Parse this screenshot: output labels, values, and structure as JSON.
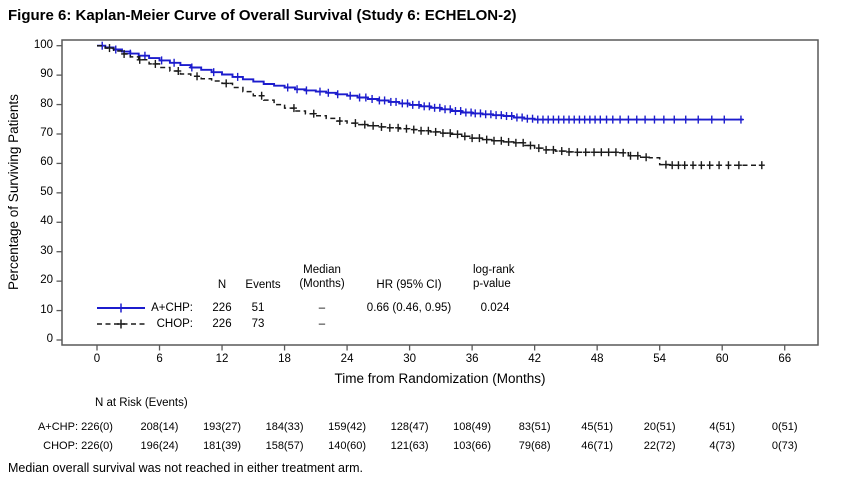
{
  "title": "Figure 6: Kaplan-Meier Curve of Overall Survival (Study 6: ECHELON-2)",
  "footnote": "Median overall survival was not reached in either treatment arm.",
  "colors": {
    "achp_line": "#1c1ccd",
    "chop_line": "#1a1a1a",
    "axis": "#595959",
    "text": "#000000"
  },
  "chart_data": {
    "type": "line",
    "subtype": "kaplan-meier-step",
    "title": "",
    "xlabel": "Time from Randomization (Months)",
    "ylabel": "Percentage of Surviving Patients",
    "xlim": [
      0,
      69
    ],
    "ylim": [
      0,
      100
    ],
    "xticks": [
      0,
      6,
      12,
      18,
      24,
      30,
      36,
      42,
      48,
      54,
      60,
      66
    ],
    "yticks": [
      0,
      10,
      20,
      30,
      40,
      50,
      60,
      70,
      80,
      90,
      100
    ],
    "grid": false,
    "legend_position": "inside-lower-left",
    "series": [
      {
        "name": "A+CHP",
        "color": "#1c1ccd",
        "style": "solid",
        "steps": [
          [
            0,
            100
          ],
          [
            0.8,
            99.4
          ],
          [
            1.6,
            98.7
          ],
          [
            2.4,
            98.0
          ],
          [
            3.2,
            97.3
          ],
          [
            4,
            96.6
          ],
          [
            5,
            95.8
          ],
          [
            6,
            95.0
          ],
          [
            7,
            94.2
          ],
          [
            8,
            93.4
          ],
          [
            9,
            92.6
          ],
          [
            10,
            91.8
          ],
          [
            11,
            91.0
          ],
          [
            12,
            90.2
          ],
          [
            13,
            89.4
          ],
          [
            14,
            88.6
          ],
          [
            15,
            87.8
          ],
          [
            16,
            87.0
          ],
          [
            17,
            86.4
          ],
          [
            18,
            85.8
          ],
          [
            19,
            85.2
          ],
          [
            20,
            84.8
          ],
          [
            21,
            84.4
          ],
          [
            22,
            84.0
          ],
          [
            23,
            83.5
          ],
          [
            24,
            83.0
          ],
          [
            25,
            82.4
          ],
          [
            26,
            81.9
          ],
          [
            27,
            81.4
          ],
          [
            28,
            80.9
          ],
          [
            29,
            80.4
          ],
          [
            30,
            79.9
          ],
          [
            31,
            79.4
          ],
          [
            32,
            78.9
          ],
          [
            33,
            78.4
          ],
          [
            34,
            77.8
          ],
          [
            35,
            77.3
          ],
          [
            36,
            77.0
          ],
          [
            37,
            76.7
          ],
          [
            38,
            76.4
          ],
          [
            39,
            76.1
          ],
          [
            40,
            75.6
          ],
          [
            41,
            75.2
          ],
          [
            42,
            74.9
          ],
          [
            62,
            74.9
          ]
        ],
        "censor_times": [
          0.5,
          1.8,
          3.2,
          4.6,
          6.2,
          7.4,
          9.1,
          11.2,
          13.5,
          18.3,
          19.2,
          20.1,
          21.4,
          22.2,
          23.1,
          24.3,
          25.2,
          25.8,
          26.4,
          27.1,
          27.6,
          28.2,
          28.7,
          29.3,
          29.8,
          30.3,
          30.9,
          31.4,
          31.9,
          32.4,
          32.9,
          33.4,
          33.9,
          34.4,
          34.9,
          35.4,
          35.9,
          36.3,
          36.8,
          37.3,
          37.8,
          38.3,
          38.8,
          39.3,
          39.8,
          40.3,
          40.8,
          41.3,
          41.8,
          42.3,
          42.8,
          43.3,
          43.8,
          44.3,
          44.8,
          45.3,
          45.8,
          46.3,
          46.8,
          47.3,
          47.8,
          48.3,
          48.9,
          49.5,
          50.2,
          51,
          51.8,
          52.6,
          53.5,
          54.4,
          55.4,
          56.5,
          57.7,
          59,
          60.2,
          61.8
        ]
      },
      {
        "name": "CHOP",
        "color": "#1a1a1a",
        "style": "dashed",
        "steps": [
          [
            0,
            100
          ],
          [
            0.8,
            99.2
          ],
          [
            1.6,
            98.2
          ],
          [
            2.4,
            97.2
          ],
          [
            3.2,
            96.2
          ],
          [
            4,
            95.2
          ],
          [
            5,
            93.8
          ],
          [
            6,
            92.6
          ],
          [
            7,
            91.4
          ],
          [
            8,
            90.4
          ],
          [
            9,
            89.6
          ],
          [
            10,
            88.8
          ],
          [
            11,
            88.0
          ],
          [
            12,
            87.2
          ],
          [
            13,
            85.8
          ],
          [
            14,
            84.4
          ],
          [
            15,
            83.0
          ],
          [
            16,
            81.5
          ],
          [
            17,
            80.0
          ],
          [
            18,
            78.8
          ],
          [
            19,
            77.8
          ],
          [
            20,
            76.9
          ],
          [
            21,
            76.2
          ],
          [
            22,
            75.3
          ],
          [
            23,
            74.4
          ],
          [
            24,
            73.7
          ],
          [
            25,
            73.2
          ],
          [
            26,
            72.8
          ],
          [
            27,
            72.4
          ],
          [
            28,
            72.1
          ],
          [
            29,
            71.8
          ],
          [
            30,
            71.5
          ],
          [
            31,
            71.1
          ],
          [
            32,
            70.7
          ],
          [
            33,
            70.3
          ],
          [
            34,
            69.9
          ],
          [
            35,
            69.2
          ],
          [
            36,
            68.6
          ],
          [
            37,
            68.1
          ],
          [
            38,
            67.7
          ],
          [
            39,
            67.3
          ],
          [
            40,
            67.0
          ],
          [
            41,
            66.1
          ],
          [
            42,
            65.2
          ],
          [
            43,
            64.6
          ],
          [
            44,
            64.2
          ],
          [
            45,
            63.9
          ],
          [
            46,
            63.8
          ],
          [
            50,
            63.6
          ],
          [
            51,
            62.6
          ],
          [
            52,
            62.1
          ],
          [
            53,
            61.9
          ],
          [
            54,
            59.6
          ],
          [
            55,
            59.4
          ],
          [
            63.8,
            59.4
          ]
        ],
        "censor_times": [
          1.2,
          2.6,
          4.1,
          5.6,
          7.8,
          9.6,
          12.4,
          15.8,
          18.9,
          20.8,
          23.3,
          24.8,
          25.7,
          26.5,
          27.3,
          28.1,
          28.9,
          29.7,
          30.4,
          31.1,
          31.8,
          32.5,
          33.2,
          33.9,
          34.6,
          35.3,
          36,
          36.7,
          37.4,
          38.1,
          38.8,
          39.5,
          40.2,
          40.9,
          41.6,
          42.4,
          43.1,
          43.8,
          44.6,
          45.3,
          46.1,
          46.9,
          47.7,
          48.4,
          49.1,
          49.8,
          50.5,
          51.2,
          51.9,
          52.7,
          54.6,
          55.2,
          55.8,
          56.4,
          57.2,
          58,
          58.8,
          59.7,
          60.6,
          61.6,
          63.8
        ]
      }
    ],
    "legend_table": {
      "headers": {
        "n": "N",
        "events": "Events",
        "median": "Median\n(Months)",
        "hr": "HR (95% CI)",
        "p": "log-rank\np-value"
      },
      "rows": [
        {
          "label": "A+CHP:",
          "n": "226",
          "events": "51",
          "median": "–",
          "hr": "0.66 (0.46, 0.95)",
          "p": "0.024"
        },
        {
          "label": "CHOP:",
          "n": "226",
          "events": "73",
          "median": "–",
          "hr": "",
          "p": ""
        }
      ]
    },
    "risk_table": {
      "title": "N at Risk (Events)",
      "times": [
        0,
        6,
        12,
        18,
        24,
        30,
        36,
        42,
        48,
        54,
        60,
        66
      ],
      "rows": [
        {
          "label": "A+CHP:",
          "values": [
            "226(0)",
            "208(14)",
            "193(27)",
            "184(33)",
            "159(42)",
            "128(47)",
            "108(49)",
            "83(51)",
            "45(51)",
            "20(51)",
            "4(51)",
            "0(51)"
          ]
        },
        {
          "label": "CHOP:",
          "values": [
            "226(0)",
            "196(24)",
            "181(39)",
            "158(57)",
            "140(60)",
            "121(63)",
            "103(66)",
            "79(68)",
            "46(71)",
            "22(72)",
            "4(73)",
            "0(73)"
          ]
        }
      ]
    }
  }
}
